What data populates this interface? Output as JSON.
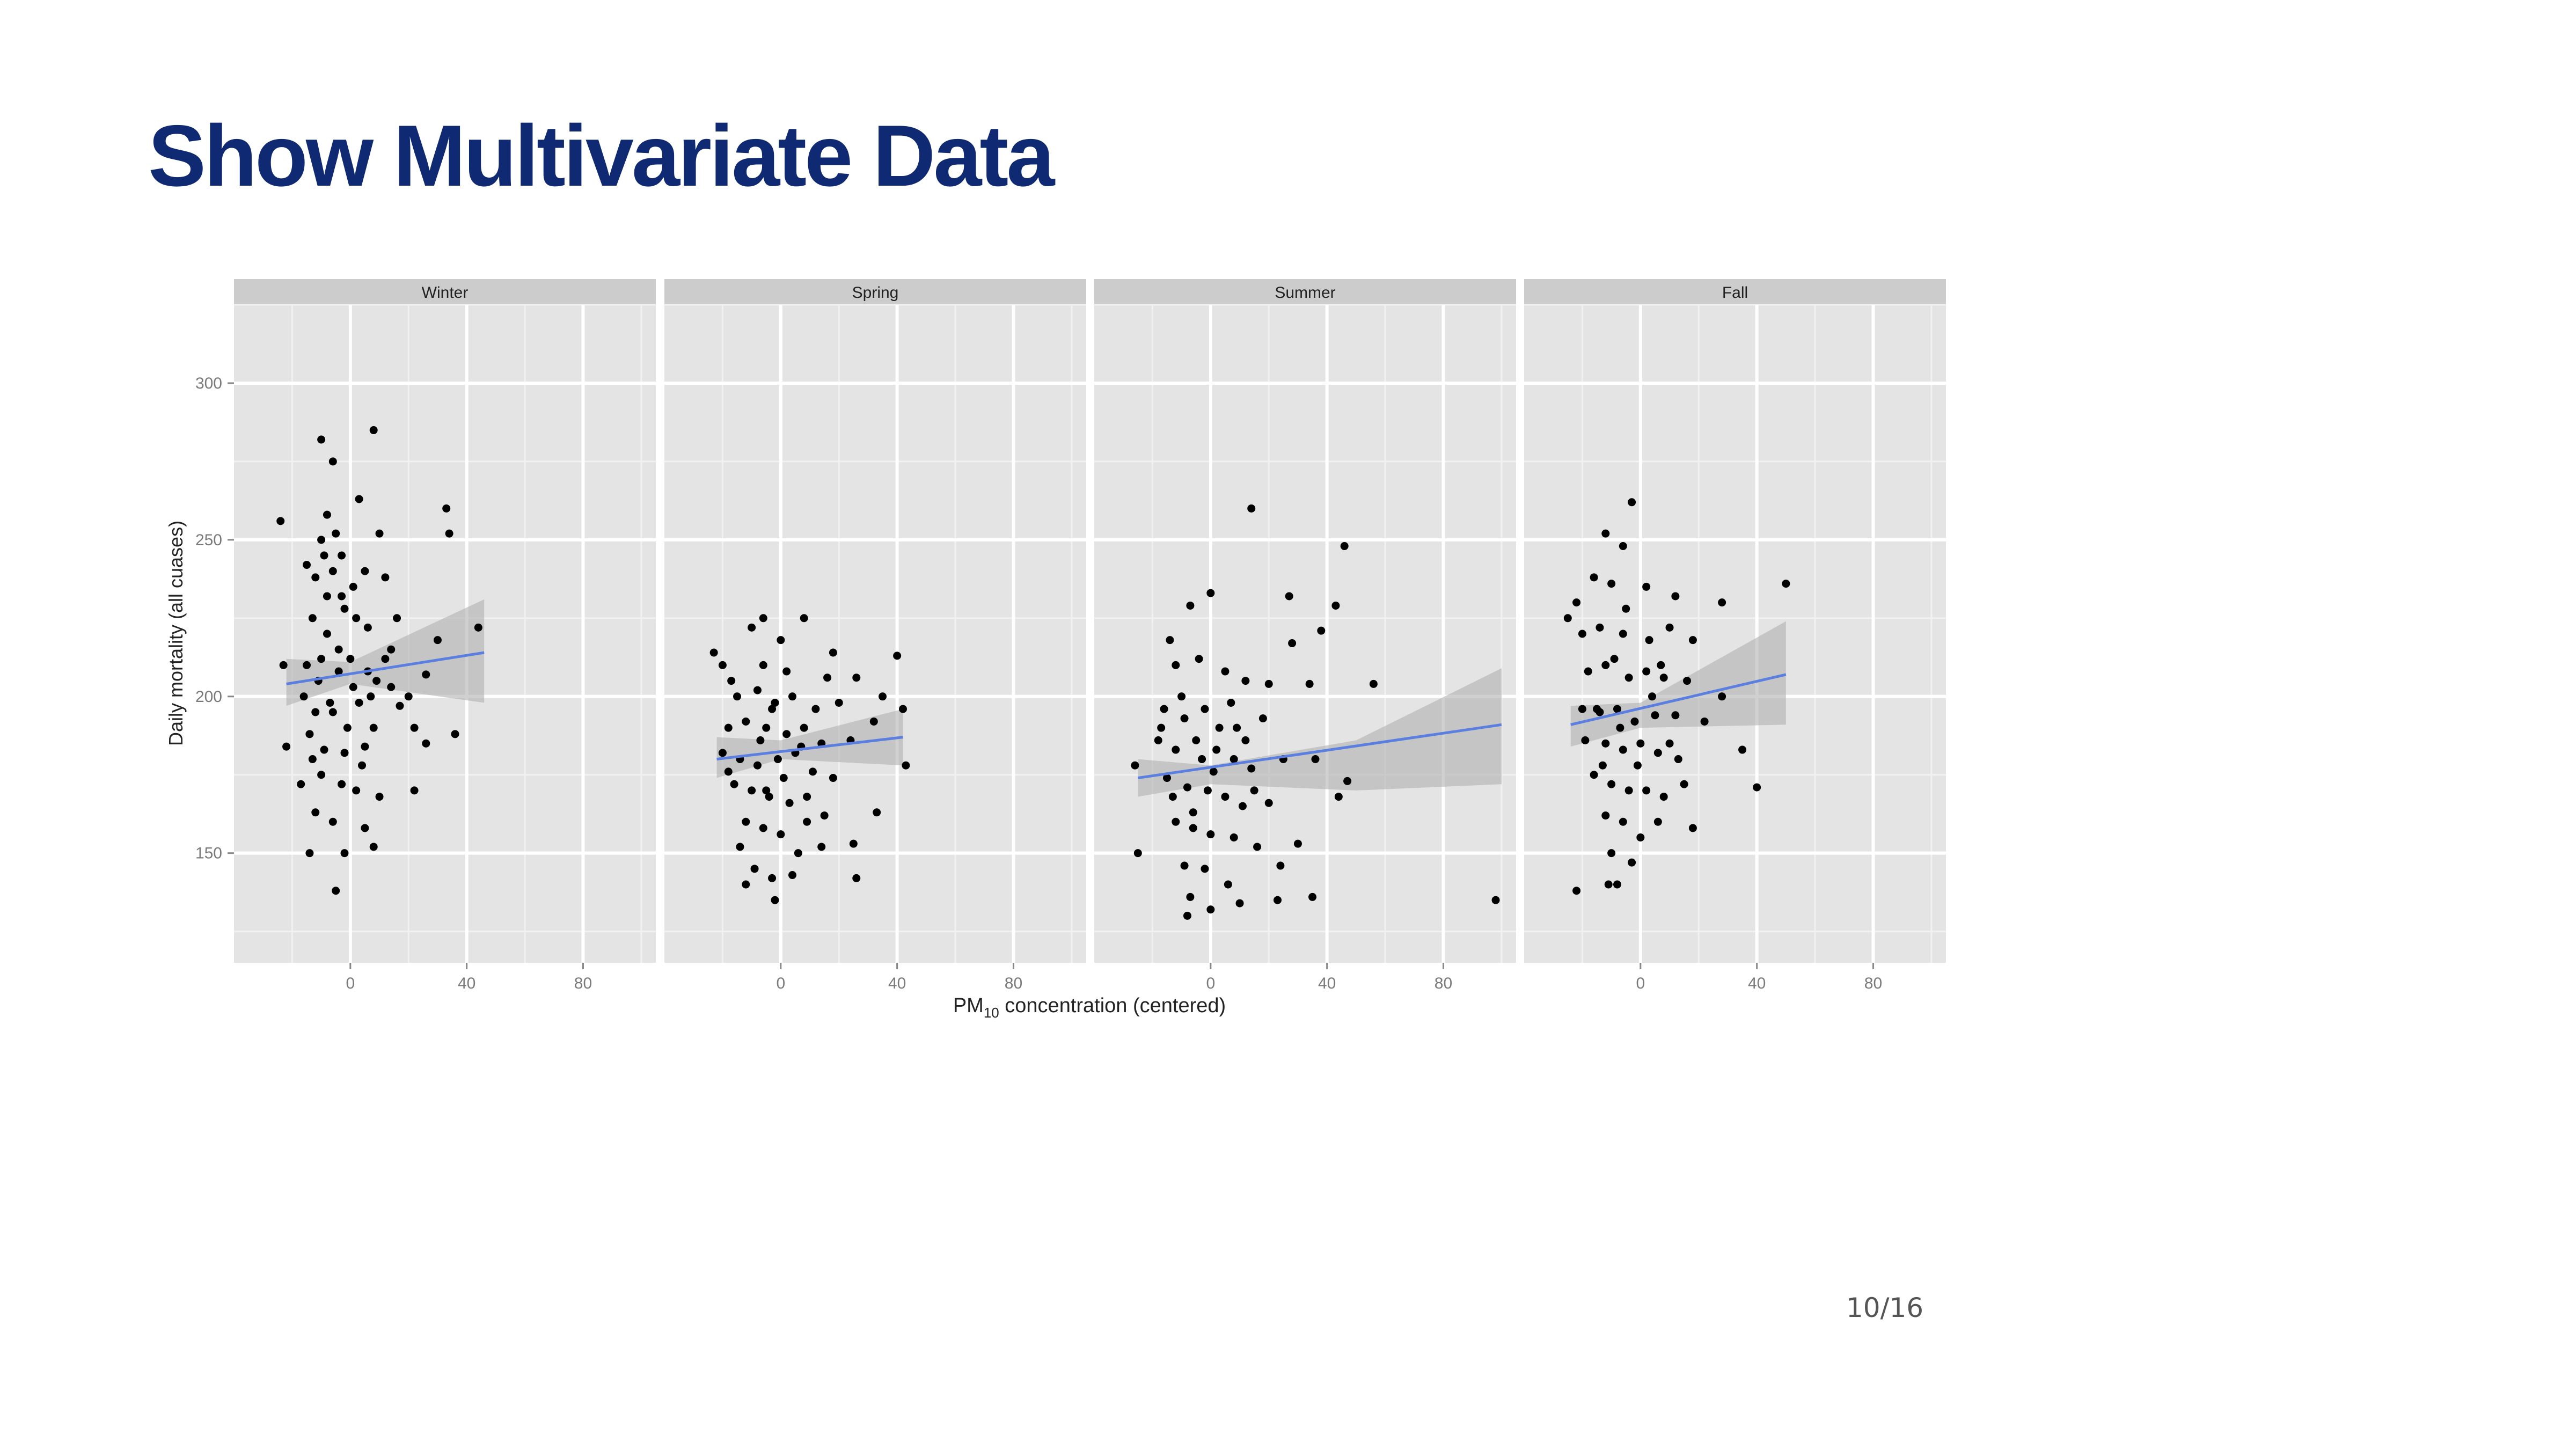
{
  "slide": {
    "title": "Show Multivariate Data",
    "page_number": "10/16"
  },
  "chart_data": {
    "type": "scatter",
    "facet_by": "season",
    "facets": [
      "Winter",
      "Spring",
      "Summer",
      "Fall"
    ],
    "xlabel": {
      "main": "PM",
      "subscript": "10",
      "rest": " concentration (centered)"
    },
    "ylabel": "Daily mortality (all cuases)",
    "xlim": [
      -40,
      105
    ],
    "ylim": [
      115,
      325
    ],
    "x_ticks": [
      0,
      40,
      80
    ],
    "y_ticks": [
      150,
      200,
      250,
      300
    ],
    "grid": true,
    "smooth": "linear fit with confidence band",
    "colors": {
      "panel": "#e4e4e4",
      "strip": "#cccccc",
      "grid": "#ffffff",
      "points": "#000000",
      "fit_line": "#5a7fe0",
      "band": "#b0b0b0"
    },
    "panels": [
      {
        "season": "Winter",
        "fit": {
          "x": [
            -22,
            46
          ],
          "y": [
            204,
            214
          ]
        },
        "band": {
          "x": [
            -22,
            0,
            46
          ],
          "upper": [
            212,
            211,
            231
          ],
          "lower": [
            197,
            204,
            198
          ]
        },
        "points": [
          [
            -24,
            256
          ],
          [
            -23,
            210
          ],
          [
            -22,
            184
          ],
          [
            -10,
            282
          ],
          [
            -6,
            275
          ],
          [
            8,
            285
          ],
          [
            3,
            263
          ],
          [
            -8,
            258
          ],
          [
            -5,
            252
          ],
          [
            10,
            252
          ],
          [
            33,
            260
          ],
          [
            34,
            252
          ],
          [
            -9,
            245
          ],
          [
            -6,
            240
          ],
          [
            5,
            240
          ],
          [
            -3,
            232
          ],
          [
            -12,
            238
          ],
          [
            12,
            238
          ],
          [
            -13,
            225
          ],
          [
            -2,
            228
          ],
          [
            16,
            225
          ],
          [
            2,
            225
          ],
          [
            44,
            222
          ],
          [
            30,
            218
          ],
          [
            -15,
            210
          ],
          [
            -10,
            212
          ],
          [
            -4,
            215
          ],
          [
            0,
            212
          ],
          [
            6,
            208
          ],
          [
            9,
            205
          ],
          [
            14,
            203
          ],
          [
            20,
            200
          ],
          [
            26,
            207
          ],
          [
            22,
            190
          ],
          [
            36,
            188
          ],
          [
            -16,
            200
          ],
          [
            -12,
            195
          ],
          [
            -7,
            198
          ],
          [
            3,
            198
          ],
          [
            8,
            190
          ],
          [
            -14,
            188
          ],
          [
            -9,
            183
          ],
          [
            -2,
            182
          ],
          [
            5,
            184
          ],
          [
            -10,
            175
          ],
          [
            -3,
            172
          ],
          [
            2,
            170
          ],
          [
            10,
            168
          ],
          [
            22,
            170
          ],
          [
            -17,
            172
          ],
          [
            -12,
            163
          ],
          [
            -6,
            160
          ],
          [
            -2,
            150
          ],
          [
            5,
            158
          ],
          [
            -14,
            150
          ],
          [
            8,
            152
          ],
          [
            -5,
            138
          ],
          [
            26,
            185
          ],
          [
            14,
            215
          ],
          [
            -8,
            220
          ],
          [
            -4,
            208
          ],
          [
            1,
            203
          ],
          [
            -11,
            205
          ],
          [
            -6,
            195
          ],
          [
            -1,
            190
          ],
          [
            4,
            178
          ],
          [
            -13,
            180
          ],
          [
            7,
            200
          ],
          [
            17,
            197
          ],
          [
            12,
            212
          ],
          [
            -8,
            232
          ],
          [
            -3,
            245
          ],
          [
            1,
            235
          ],
          [
            -10,
            250
          ],
          [
            -15,
            242
          ],
          [
            6,
            222
          ]
        ]
      },
      {
        "season": "Spring",
        "fit": {
          "x": [
            -22,
            42
          ],
          "y": [
            180,
            187
          ]
        },
        "band": {
          "x": [
            -22,
            0,
            42
          ],
          "upper": [
            187,
            186,
            196
          ],
          "lower": [
            174,
            180,
            178
          ]
        },
        "points": [
          [
            -23,
            214
          ],
          [
            -20,
            210
          ],
          [
            -17,
            205
          ],
          [
            -10,
            222
          ],
          [
            -6,
            225
          ],
          [
            0,
            218
          ],
          [
            8,
            225
          ],
          [
            18,
            214
          ],
          [
            26,
            206
          ],
          [
            40,
            213
          ],
          [
            -15,
            200
          ],
          [
            -8,
            202
          ],
          [
            -2,
            198
          ],
          [
            4,
            200
          ],
          [
            12,
            196
          ],
          [
            20,
            198
          ],
          [
            35,
            200
          ],
          [
            42,
            196
          ],
          [
            -18,
            190
          ],
          [
            -12,
            192
          ],
          [
            -5,
            190
          ],
          [
            2,
            188
          ],
          [
            8,
            190
          ],
          [
            14,
            185
          ],
          [
            24,
            186
          ],
          [
            32,
            192
          ],
          [
            -20,
            182
          ],
          [
            -14,
            180
          ],
          [
            -8,
            178
          ],
          [
            -1,
            180
          ],
          [
            5,
            182
          ],
          [
            11,
            176
          ],
          [
            18,
            174
          ],
          [
            -16,
            172
          ],
          [
            -10,
            170
          ],
          [
            -4,
            168
          ],
          [
            3,
            166
          ],
          [
            9,
            168
          ],
          [
            15,
            162
          ],
          [
            -12,
            160
          ],
          [
            -6,
            158
          ],
          [
            0,
            156
          ],
          [
            6,
            150
          ],
          [
            14,
            152
          ],
          [
            25,
            153
          ],
          [
            -9,
            145
          ],
          [
            -3,
            142
          ],
          [
            4,
            143
          ],
          [
            26,
            142
          ],
          [
            -12,
            140
          ],
          [
            -2,
            135
          ],
          [
            43,
            178
          ],
          [
            33,
            163
          ],
          [
            -6,
            210
          ],
          [
            2,
            208
          ],
          [
            -3,
            196
          ],
          [
            7,
            184
          ],
          [
            -7,
            186
          ],
          [
            1,
            174
          ],
          [
            -14,
            152
          ],
          [
            9,
            160
          ],
          [
            -18,
            176
          ],
          [
            16,
            206
          ],
          [
            -5,
            170
          ]
        ]
      },
      {
        "season": "Summer",
        "fit": {
          "x": [
            -25,
            100
          ],
          "y": [
            174,
            191
          ]
        },
        "band": {
          "x": [
            -25,
            0,
            50,
            100
          ],
          "upper": [
            180,
            178,
            186,
            209
          ],
          "lower": [
            168,
            172,
            170,
            172
          ]
        },
        "points": [
          [
            -26,
            178
          ],
          [
            -25,
            150
          ],
          [
            -14,
            218
          ],
          [
            -7,
            229
          ],
          [
            0,
            233
          ],
          [
            14,
            260
          ],
          [
            46,
            248
          ],
          [
            43,
            229
          ],
          [
            38,
            221
          ],
          [
            27,
            232
          ],
          [
            -12,
            210
          ],
          [
            -4,
            212
          ],
          [
            5,
            208
          ],
          [
            12,
            205
          ],
          [
            20,
            204
          ],
          [
            28,
            217
          ],
          [
            34,
            204
          ],
          [
            56,
            204
          ],
          [
            -16,
            196
          ],
          [
            -9,
            193
          ],
          [
            -2,
            196
          ],
          [
            3,
            190
          ],
          [
            9,
            190
          ],
          [
            18,
            193
          ],
          [
            -18,
            186
          ],
          [
            -12,
            183
          ],
          [
            -5,
            186
          ],
          [
            2,
            183
          ],
          [
            8,
            180
          ],
          [
            14,
            177
          ],
          [
            25,
            180
          ],
          [
            36,
            180
          ],
          [
            -15,
            174
          ],
          [
            -8,
            171
          ],
          [
            -1,
            170
          ],
          [
            5,
            168
          ],
          [
            11,
            165
          ],
          [
            20,
            166
          ],
          [
            -12,
            160
          ],
          [
            -6,
            158
          ],
          [
            0,
            156
          ],
          [
            8,
            155
          ],
          [
            16,
            152
          ],
          [
            30,
            153
          ],
          [
            -9,
            146
          ],
          [
            -2,
            145
          ],
          [
            6,
            140
          ],
          [
            24,
            146
          ],
          [
            -7,
            136
          ],
          [
            0,
            132
          ],
          [
            10,
            134
          ],
          [
            23,
            135
          ],
          [
            35,
            136
          ],
          [
            -8,
            130
          ],
          [
            44,
            168
          ],
          [
            47,
            173
          ],
          [
            98,
            135
          ],
          [
            -13,
            168
          ],
          [
            -3,
            180
          ],
          [
            7,
            198
          ],
          [
            -10,
            200
          ],
          [
            15,
            170
          ],
          [
            1,
            176
          ],
          [
            -6,
            163
          ],
          [
            12,
            186
          ],
          [
            -17,
            190
          ]
        ]
      },
      {
        "season": "Fall",
        "fit": {
          "x": [
            -24,
            50
          ],
          "y": [
            191,
            207
          ]
        },
        "band": {
          "x": [
            -24,
            0,
            50
          ],
          "upper": [
            197,
            198,
            224
          ],
          "lower": [
            184,
            190,
            191
          ]
        },
        "points": [
          [
            -25,
            225
          ],
          [
            -22,
            230
          ],
          [
            -12,
            252
          ],
          [
            -3,
            262
          ],
          [
            -6,
            248
          ],
          [
            -16,
            238
          ],
          [
            -10,
            236
          ],
          [
            2,
            235
          ],
          [
            12,
            232
          ],
          [
            28,
            230
          ],
          [
            50,
            236
          ],
          [
            -20,
            220
          ],
          [
            -14,
            222
          ],
          [
            -6,
            220
          ],
          [
            3,
            218
          ],
          [
            10,
            222
          ],
          [
            18,
            218
          ],
          [
            -18,
            208
          ],
          [
            -12,
            210
          ],
          [
            -4,
            206
          ],
          [
            2,
            208
          ],
          [
            8,
            206
          ],
          [
            16,
            205
          ],
          [
            -20,
            196
          ],
          [
            -14,
            195
          ],
          [
            -8,
            196
          ],
          [
            -2,
            192
          ],
          [
            5,
            194
          ],
          [
            12,
            194
          ],
          [
            22,
            192
          ],
          [
            28,
            200
          ],
          [
            35,
            183
          ],
          [
            -19,
            186
          ],
          [
            -12,
            185
          ],
          [
            -6,
            183
          ],
          [
            0,
            185
          ],
          [
            6,
            182
          ],
          [
            13,
            180
          ],
          [
            -16,
            175
          ],
          [
            -10,
            172
          ],
          [
            -4,
            170
          ],
          [
            2,
            170
          ],
          [
            8,
            168
          ],
          [
            15,
            172
          ],
          [
            -12,
            162
          ],
          [
            -6,
            160
          ],
          [
            0,
            155
          ],
          [
            6,
            160
          ],
          [
            18,
            158
          ],
          [
            -10,
            150
          ],
          [
            -3,
            147
          ],
          [
            -8,
            140
          ],
          [
            -22,
            138
          ],
          [
            -11,
            140
          ],
          [
            40,
            171
          ],
          [
            -15,
            196
          ],
          [
            -7,
            190
          ],
          [
            -1,
            178
          ],
          [
            4,
            200
          ],
          [
            -9,
            212
          ],
          [
            10,
            185
          ],
          [
            -5,
            228
          ],
          [
            7,
            210
          ],
          [
            -13,
            178
          ]
        ]
      }
    ]
  }
}
